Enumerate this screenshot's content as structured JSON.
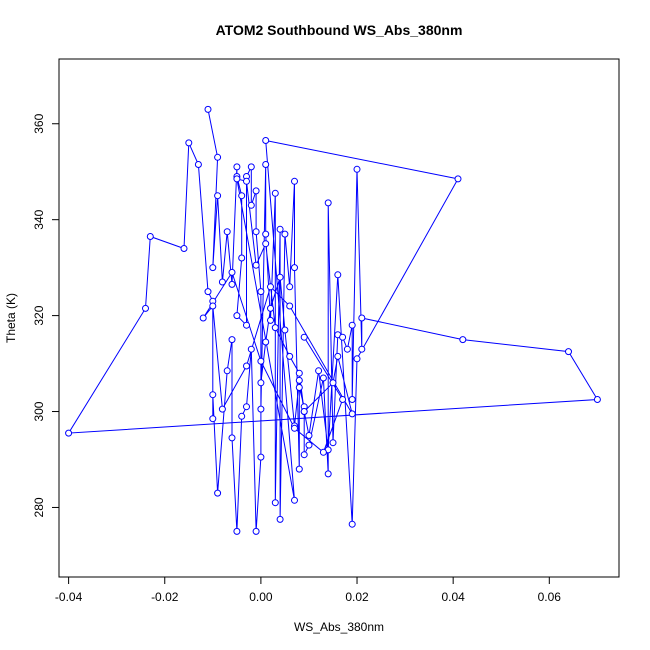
{
  "chart_data": {
    "type": "line",
    "title": "ATOM2 Southbound WS_Abs_380nm",
    "xlabel": "WS_Abs_380nm",
    "ylabel": "Theta (K)",
    "xlim": [
      -0.042,
      0.0745
    ],
    "ylim": [
      265.5,
      373.5
    ],
    "xticks": [
      -0.04,
      -0.02,
      0.0,
      0.02,
      0.04,
      0.06
    ],
    "xtick_labels": [
      "-0.04",
      "-0.02",
      "0.00",
      "0.02",
      "0.04",
      "0.06"
    ],
    "yticks": [
      280,
      300,
      320,
      340,
      360
    ],
    "ytick_labels": [
      "280",
      "300",
      "320",
      "340",
      "360"
    ],
    "grid": false,
    "legend": "none",
    "series_color": "#0000ff",
    "marker": "open-circle",
    "series": [
      {
        "x": [
          -0.011,
          -0.009,
          -0.01,
          -0.009,
          -0.008,
          -0.007,
          -0.006,
          -0.005,
          -0.005,
          -0.004,
          -0.004,
          -0.005,
          -0.003,
          -0.003,
          -0.002,
          -0.002,
          -0.001,
          -0.001,
          0.0,
          0.0,
          0.001,
          0.001,
          0.002,
          0.003,
          0.003,
          0.004,
          0.004,
          0.005,
          0.006,
          0.007,
          0.007,
          0.008,
          0.008,
          0.009,
          0.009,
          0.01,
          0.013,
          0.014,
          0.014,
          0.015,
          0.016,
          0.017,
          0.018,
          0.019,
          0.019,
          0.02,
          0.021,
          0.021,
          0.042,
          0.064,
          0.07,
          -0.04,
          -0.024,
          -0.023,
          -0.016,
          -0.015,
          -0.013,
          -0.011,
          -0.01,
          -0.01,
          -0.01,
          -0.009,
          -0.007,
          -0.006,
          -0.006,
          -0.005,
          -0.004,
          -0.003,
          -0.002,
          -0.001,
          0.0,
          0.0,
          0.001,
          0.002,
          0.004,
          0.005,
          0.007,
          0.008,
          0.009,
          0.01,
          0.012,
          0.014,
          0.016,
          0.019,
          0.02,
          0.041,
          0.001,
          0.007,
          -0.005,
          -0.003,
          -0.001,
          0.001,
          0.003,
          0.006,
          0.008,
          0.009,
          0.015,
          0.016,
          0.019,
          0.006,
          0.002,
          -0.003,
          -0.008,
          -0.01,
          -0.012,
          -0.006,
          0.0,
          0.007,
          0.013,
          0.017,
          0.009
        ],
        "y": [
          363.0,
          353.0,
          330.0,
          345.0,
          327.0,
          337.5,
          326.5,
          351.0,
          349.0,
          345.0,
          332.0,
          320.0,
          318.0,
          349.0,
          351.0,
          343.0,
          346.0,
          337.5,
          325.0,
          300.5,
          351.5,
          337.0,
          319.0,
          345.5,
          281.0,
          338.0,
          277.5,
          337.0,
          326.0,
          348.0,
          330.0,
          288.0,
          305.0,
          301.0,
          291.0,
          293.0,
          307.0,
          287.0,
          343.5,
          293.5,
          316.0,
          315.5,
          313.0,
          318.0,
          302.5,
          350.5,
          313.0,
          319.5,
          315.0,
          312.5,
          302.5,
          295.5,
          321.5,
          336.5,
          334.0,
          356.0,
          351.5,
          325.0,
          323.0,
          298.5,
          303.5,
          283.0,
          308.5,
          315.0,
          294.5,
          275.0,
          299.0,
          301.0,
          313.0,
          275.0,
          290.5,
          306.0,
          314.5,
          321.5,
          328.0,
          317.0,
          297.0,
          306.5,
          300.0,
          295.0,
          308.5,
          292.0,
          328.5,
          276.5,
          311.0,
          348.5,
          356.5,
          281.5,
          348.5,
          348.0,
          330.5,
          335.0,
          317.5,
          311.5,
          308.0,
          300.0,
          306.0,
          311.5,
          299.5,
          322.0,
          326.0,
          309.5,
          300.5,
          322.0,
          319.5,
          329.0,
          310.5,
          296.5,
          291.5,
          302.5,
          315.5
        ]
      }
    ]
  }
}
